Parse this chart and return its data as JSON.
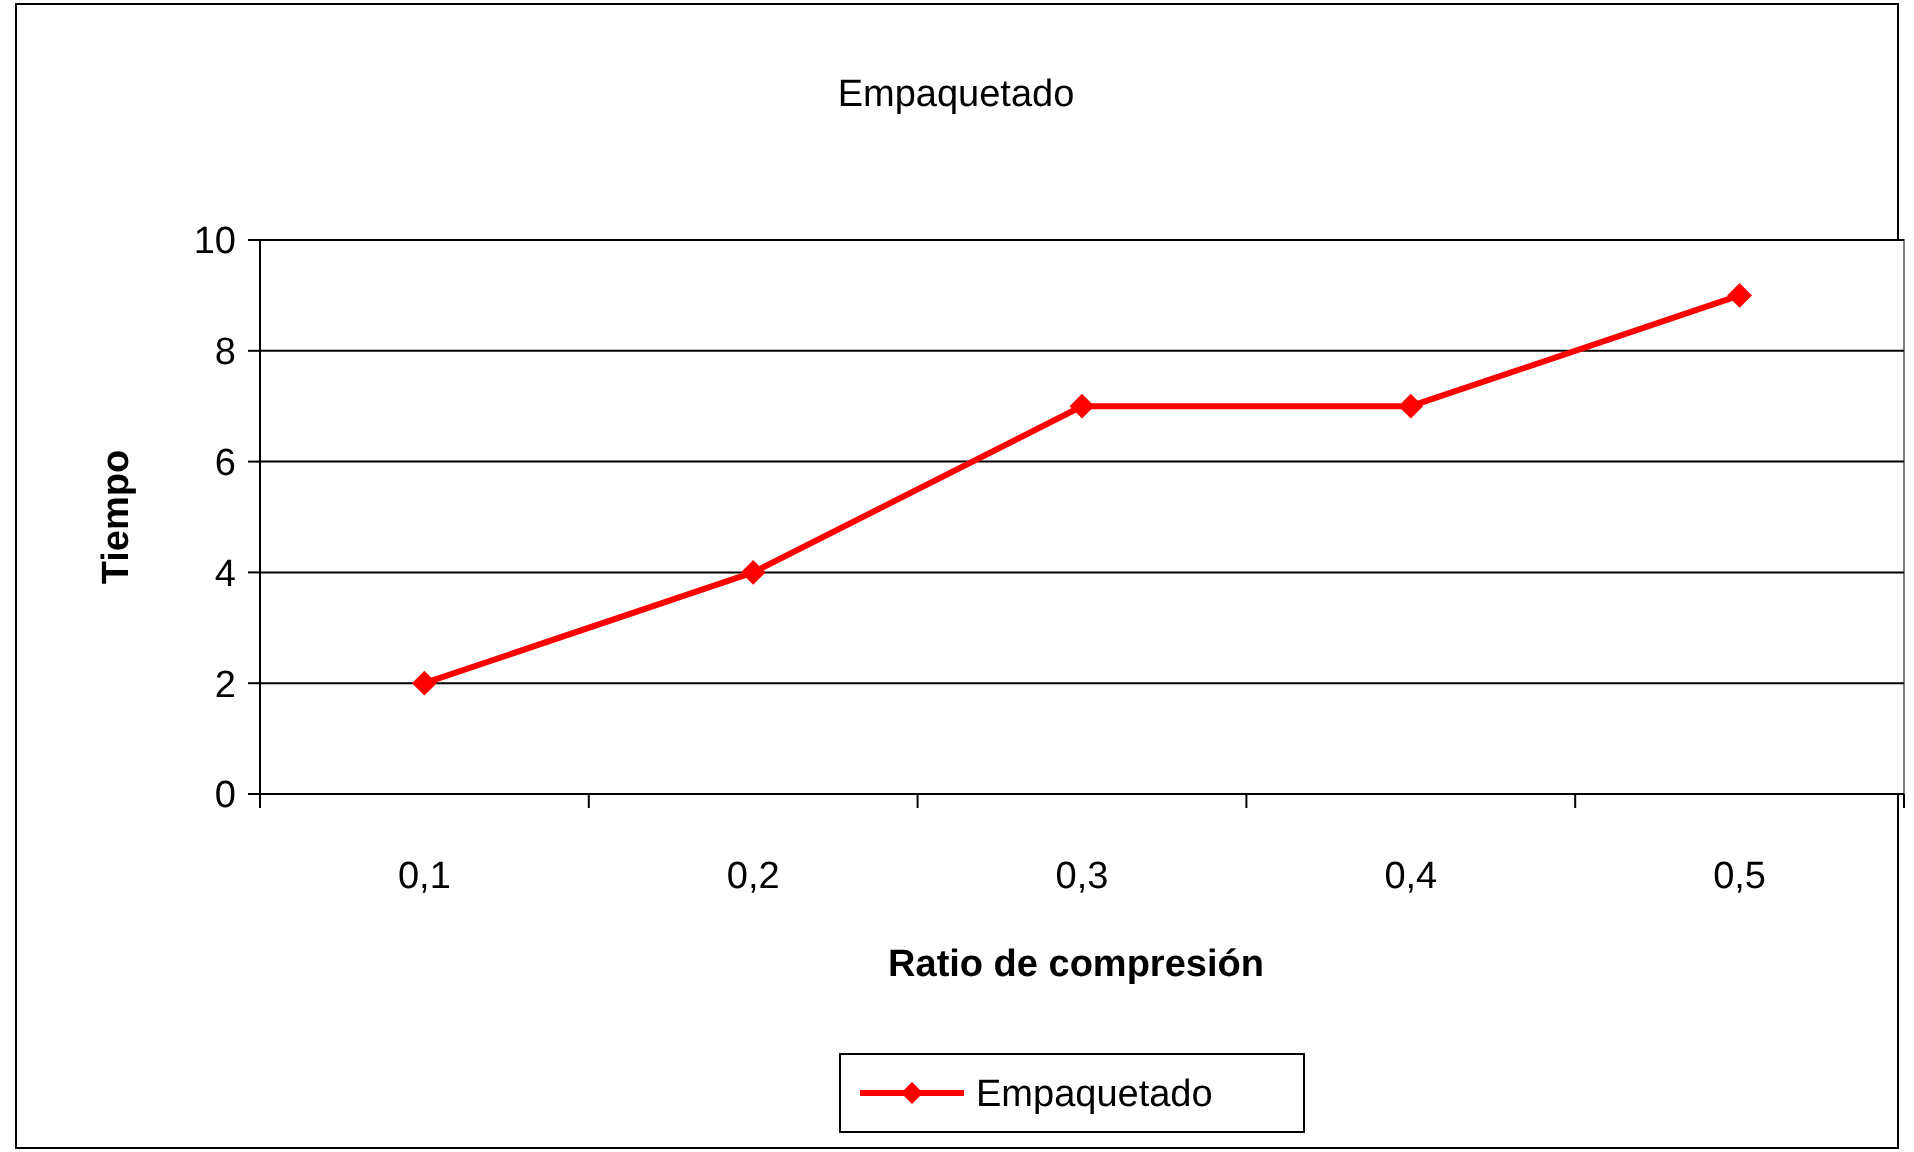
{
  "chart_data": {
    "type": "line",
    "title": "Empaquetado",
    "xlabel": "Ratio de compresión",
    "ylabel": "Tiempo",
    "categories": [
      "0,1",
      "0,2",
      "0,3",
      "0,4",
      "0,5"
    ],
    "series": [
      {
        "name": "Empaquetado",
        "color": "#ff0000",
        "values": [
          2,
          4,
          7,
          7,
          9
        ]
      }
    ],
    "ylim": [
      0,
      10
    ],
    "yticks": [
      0,
      2,
      4,
      6,
      8,
      10
    ],
    "grid": "y",
    "legend": "bottom",
    "marker": "diamond",
    "line_style": "solid"
  }
}
